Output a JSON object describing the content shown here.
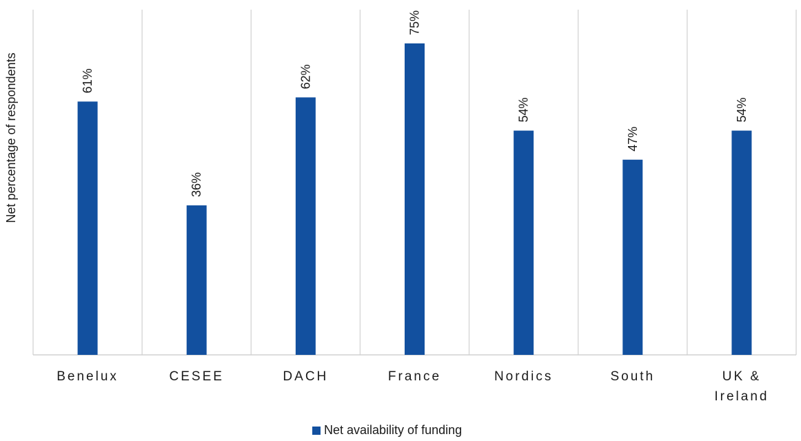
{
  "chart_data": {
    "type": "bar",
    "categories": [
      "Benelux",
      "CESEE",
      "DACH",
      "France",
      "Nordics",
      "South",
      "UK & Ireland"
    ],
    "category_lines": [
      [
        "Benelux"
      ],
      [
        "CESEE"
      ],
      [
        "DACH"
      ],
      [
        "France"
      ],
      [
        "Nordics"
      ],
      [
        "South"
      ],
      [
        "UK &",
        "Ireland"
      ]
    ],
    "series": [
      {
        "name": "Net availability of funding",
        "values": [
          61,
          36,
          62,
          75,
          54,
          47,
          54
        ],
        "labels": [
          "61%",
          "36%",
          "62%",
          "75%",
          "54%",
          "47%",
          "54%"
        ],
        "color": "#12509f"
      }
    ],
    "ylabel": "Net percentage of respondents",
    "ylim": [
      0,
      75
    ],
    "grid": "vertical category separators",
    "legend_position": "bottom"
  }
}
